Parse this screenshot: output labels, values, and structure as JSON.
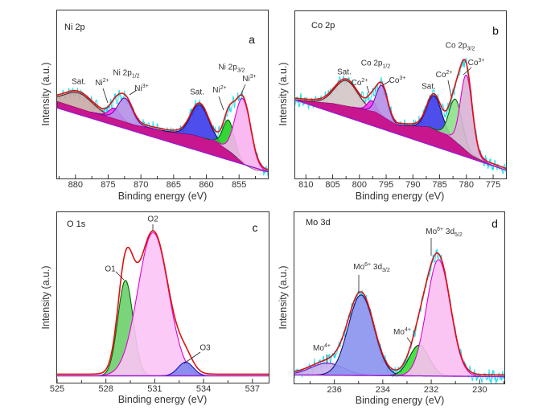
{
  "panels": [
    {
      "element_label": "Ni 2p",
      "panel_letter": "a",
      "xlabel": "Binding energy (eV)",
      "ylabel": "Intensity (a.u.)",
      "xlim": [
        882.8,
        850.6
      ],
      "ylim": [
        0,
        1
      ],
      "xticks": [
        880,
        875,
        870,
        865,
        860,
        855
      ],
      "minor_step": 2.5,
      "tick_labels": [
        "880",
        "875",
        "870",
        "865",
        "860",
        "855"
      ],
      "raw_data": true,
      "baseline": [
        [
          882.8,
          0.42
        ],
        [
          850.6,
          0.04
        ]
      ],
      "background": [
        [
          882.8,
          0.46
        ],
        [
          878,
          0.4
        ],
        [
          875,
          0.37
        ],
        [
          871,
          0.32
        ],
        [
          866,
          0.28
        ],
        [
          862,
          0.26
        ],
        [
          858.5,
          0.22
        ],
        [
          856,
          0.15
        ],
        [
          854,
          0.08
        ],
        [
          852.5,
          0.05
        ],
        [
          850.6,
          0.04
        ]
      ],
      "background_color": "#c8168e",
      "peaks": [
        {
          "name": "Sat.",
          "center": 879.5,
          "fwhm": 5.0,
          "height": 0.09,
          "color": "#c9aaa6",
          "stroke": "#7a1010"
        },
        {
          "name": "Ni2+",
          "center": 874.0,
          "fwhm": 2.0,
          "height": 0.06,
          "color": "#ff33ff",
          "stroke": "#aa00aa"
        },
        {
          "name": "Ni3+",
          "center": 872.4,
          "fwhm": 2.6,
          "height": 0.14,
          "color": "#b48fe8",
          "stroke": "#7a00aa"
        },
        {
          "name": "Sat.",
          "center": 861.0,
          "fwhm": 3.2,
          "height": 0.19,
          "color": "#3b3bea",
          "stroke": "#10106a"
        },
        {
          "name": "Ni2+",
          "center": 856.6,
          "fwhm": 2.0,
          "height": 0.18,
          "color": "#1ed01e",
          "stroke": "#006600"
        },
        {
          "name": "Ni3+",
          "center": 854.4,
          "fwhm": 2.8,
          "height": 0.38,
          "color": "#f7b2f0",
          "stroke": "#e000d0"
        }
      ],
      "annotations": [
        {
          "base": "Sat.",
          "sup": "",
          "sub": ""
        },
        {
          "base": "Ni",
          "sup": "2+",
          "sub": ""
        },
        {
          "base": "Ni 2p",
          "sup": "",
          "sub": "1/2"
        },
        {
          "base": "Ni",
          "sup": "3+",
          "sub": ""
        },
        {
          "base": "Sat.",
          "sup": "",
          "sub": ""
        },
        {
          "base": "Ni",
          "sup": "2+",
          "sub": ""
        },
        {
          "base": "Ni 2p",
          "sup": "",
          "sub": "3/2"
        },
        {
          "base": "Ni",
          "sup": "3+",
          "sub": ""
        }
      ]
    },
    {
      "element_label": "Co 2p",
      "panel_letter": "b",
      "xlabel": "Binding energy (eV)",
      "ylabel": "Intensity (a.u.)",
      "xlim": [
        812,
        772.6
      ],
      "ylim": [
        0,
        1
      ],
      "xticks": [
        810,
        805,
        800,
        795,
        790,
        785,
        780,
        775
      ],
      "minor_step": 2.5,
      "tick_labels": [
        "810",
        "805",
        "800",
        "795",
        "790",
        "785",
        "780",
        "775"
      ],
      "raw_data": true,
      "baseline": [
        [
          812,
          0.47
        ],
        [
          772.6,
          0.05
        ]
      ],
      "background": [
        [
          812,
          0.47
        ],
        [
          805,
          0.45
        ],
        [
          800,
          0.42
        ],
        [
          797,
          0.4
        ],
        [
          793,
          0.32
        ],
        [
          787,
          0.31
        ],
        [
          783,
          0.25
        ],
        [
          779,
          0.14
        ],
        [
          776,
          0.09
        ],
        [
          772.6,
          0.05
        ]
      ],
      "background_color": "#c8168e",
      "peaks": [
        {
          "name": "Sat.",
          "center": 802.5,
          "fwhm": 5.0,
          "height": 0.15,
          "color": "#d3c5c5",
          "stroke": "#7a1010"
        },
        {
          "name": "Co2+",
          "center": 797.7,
          "fwhm": 2.0,
          "height": 0.06,
          "color": "#ff33ff",
          "stroke": "#aa00aa"
        },
        {
          "name": "Co3+",
          "center": 795.8,
          "fwhm": 2.4,
          "height": 0.18,
          "color": "#b48fe8",
          "stroke": "#7a00aa"
        },
        {
          "name": "Sat.",
          "center": 786.0,
          "fwhm": 3.2,
          "height": 0.2,
          "color": "#3b3bea",
          "stroke": "#10106a"
        },
        {
          "name": "Co2+",
          "center": 782.0,
          "fwhm": 2.8,
          "height": 0.25,
          "color": "#8ee08a",
          "stroke": "#006600"
        },
        {
          "name": "Co3+",
          "center": 780.0,
          "fwhm": 2.6,
          "height": 0.45,
          "color": "#d9b3d6",
          "stroke": "#e000d0"
        }
      ],
      "annotations": [
        {
          "base": "Sat.",
          "sup": "",
          "sub": ""
        },
        {
          "base": "Co",
          "sup": "2+",
          "sub": ""
        },
        {
          "base": "Co 2p",
          "sup": "",
          "sub": "1/2"
        },
        {
          "base": "Co",
          "sup": "3+",
          "sub": ""
        },
        {
          "base": "Sat.",
          "sup": "",
          "sub": ""
        },
        {
          "base": "Co",
          "sup": "2+",
          "sub": ""
        },
        {
          "base": "Co 2p",
          "sup": "",
          "sub": "3/2"
        },
        {
          "base": "Co",
          "sup": "3+",
          "sub": ""
        }
      ]
    },
    {
      "element_label": "O 1s",
      "panel_letter": "c",
      "xlabel": "Binding energy (eV)",
      "ylabel": "Intensity (a.u.)",
      "xlim": [
        525,
        538
      ],
      "ylim": [
        0,
        1
      ],
      "xticks": [
        525,
        528,
        531,
        534,
        537
      ],
      "minor_step": 1.5,
      "tick_labels": [
        "525",
        "528",
        "531",
        "534",
        "537"
      ],
      "raw_data": false,
      "baseline": [
        [
          525,
          0.04
        ],
        [
          538,
          0.04
        ]
      ],
      "background": [
        [
          525,
          0.04
        ],
        [
          538,
          0.04
        ]
      ],
      "background_color": "#2030e0",
      "peaks": [
        {
          "name": "O1",
          "center": 529.2,
          "fwhm": 1.1,
          "height": 0.56,
          "color": "#6cd06c",
          "stroke": "#006600"
        },
        {
          "name": "O2",
          "center": 530.9,
          "fwhm": 2.2,
          "height": 0.84,
          "color": "#fbc4f5",
          "stroke": "#e000d0"
        },
        {
          "name": "O3",
          "center": 532.9,
          "fwhm": 1.1,
          "height": 0.08,
          "color": "#7f86ee",
          "stroke": "#1010c0"
        }
      ],
      "annotations": [
        {
          "base": "O1",
          "sup": "",
          "sub": ""
        },
        {
          "base": "O2",
          "sup": "",
          "sub": ""
        },
        {
          "base": "O3",
          "sup": "",
          "sub": ""
        }
      ]
    },
    {
      "element_label": "Mo 3d",
      "panel_letter": "d",
      "xlabel": "Binding energy (eV)",
      "ylabel": "Intensity (a.u.)",
      "xlim": [
        237.65,
        228.98
      ],
      "ylim": [
        0,
        1
      ],
      "xticks": [
        236,
        234,
        232,
        230
      ],
      "minor_step": 1,
      "tick_labels": [
        "236",
        "234",
        "232",
        "230"
      ],
      "raw_data": true,
      "baseline": [
        [
          237.65,
          0.05
        ],
        [
          228.98,
          0.04
        ]
      ],
      "background": [
        [
          237.65,
          0.05
        ],
        [
          228.98,
          0.04
        ]
      ],
      "background_color": "#2020a0",
      "peaks": [
        {
          "name": "Mo4+",
          "center": 236.3,
          "fwhm": 1.6,
          "height": 0.07,
          "color": "#c9b0ec",
          "stroke": "#7a00cc"
        },
        {
          "name": "Mo6+ 3d3/2",
          "center": 234.9,
          "fwhm": 1.25,
          "height": 0.47,
          "color": "#8a92ee",
          "stroke": "#10106a"
        },
        {
          "name": "Mo4+",
          "center": 232.5,
          "fwhm": 0.95,
          "height": 0.18,
          "color": "#33e033",
          "stroke": "#004400"
        },
        {
          "name": "Mo6+ 3d5/2",
          "center": 231.7,
          "fwhm": 1.15,
          "height": 0.68,
          "color": "#fbbff2",
          "stroke": "#e000d0"
        }
      ],
      "annotations": [
        {
          "base": "Mo",
          "sup": "4+",
          "sub": ""
        },
        {
          "base": "Mo",
          "sup": "6+",
          "sub": "3/2",
          "mid": " 3d"
        },
        {
          "base": "Mo",
          "sup": "4+",
          "sub": ""
        },
        {
          "base": "Mo",
          "sup": "6+",
          "sub": "5/2",
          "mid": " 3d"
        }
      ]
    }
  ],
  "colors": {
    "envelope": "#e01010",
    "raw_data": "#22e0f0",
    "baseline": "#9a1ad0",
    "frame": "#333333"
  }
}
